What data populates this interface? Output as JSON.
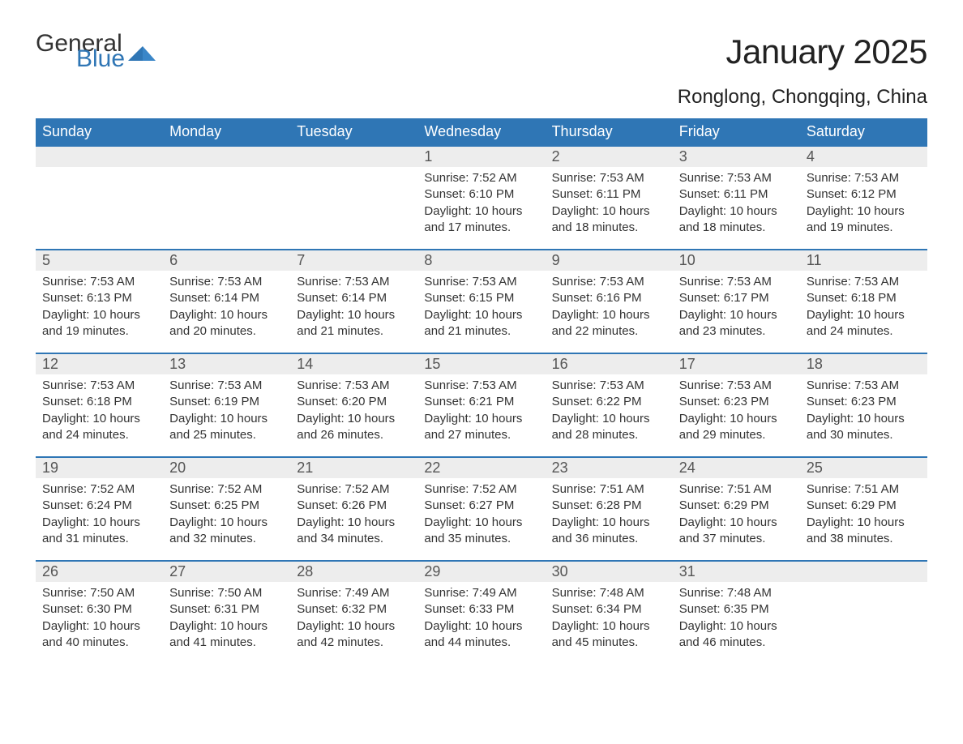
{
  "brand": {
    "word1": "General",
    "word2": "Blue",
    "color": "#2f76b5"
  },
  "title": "January 2025",
  "location": "Ronglong, Chongqing, China",
  "colors": {
    "header_bg": "#2f76b5",
    "header_text": "#ffffff",
    "daynum_bg": "#ededed",
    "body_text": "#333333",
    "page_bg": "#ffffff",
    "row_border": "#2f76b5"
  },
  "typography": {
    "title_fontsize": 42,
    "location_fontsize": 24,
    "header_fontsize": 18,
    "daynum_fontsize": 18,
    "body_fontsize": 15,
    "logo_fontsize": 30
  },
  "days_of_week": [
    "Sunday",
    "Monday",
    "Tuesday",
    "Wednesday",
    "Thursday",
    "Friday",
    "Saturday"
  ],
  "weeks": [
    [
      null,
      null,
      null,
      {
        "n": "1",
        "sunrise": "Sunrise: 7:52 AM",
        "sunset": "Sunset: 6:10 PM",
        "dl1": "Daylight: 10 hours",
        "dl2": "and 17 minutes."
      },
      {
        "n": "2",
        "sunrise": "Sunrise: 7:53 AM",
        "sunset": "Sunset: 6:11 PM",
        "dl1": "Daylight: 10 hours",
        "dl2": "and 18 minutes."
      },
      {
        "n": "3",
        "sunrise": "Sunrise: 7:53 AM",
        "sunset": "Sunset: 6:11 PM",
        "dl1": "Daylight: 10 hours",
        "dl2": "and 18 minutes."
      },
      {
        "n": "4",
        "sunrise": "Sunrise: 7:53 AM",
        "sunset": "Sunset: 6:12 PM",
        "dl1": "Daylight: 10 hours",
        "dl2": "and 19 minutes."
      }
    ],
    [
      {
        "n": "5",
        "sunrise": "Sunrise: 7:53 AM",
        "sunset": "Sunset: 6:13 PM",
        "dl1": "Daylight: 10 hours",
        "dl2": "and 19 minutes."
      },
      {
        "n": "6",
        "sunrise": "Sunrise: 7:53 AM",
        "sunset": "Sunset: 6:14 PM",
        "dl1": "Daylight: 10 hours",
        "dl2": "and 20 minutes."
      },
      {
        "n": "7",
        "sunrise": "Sunrise: 7:53 AM",
        "sunset": "Sunset: 6:14 PM",
        "dl1": "Daylight: 10 hours",
        "dl2": "and 21 minutes."
      },
      {
        "n": "8",
        "sunrise": "Sunrise: 7:53 AM",
        "sunset": "Sunset: 6:15 PM",
        "dl1": "Daylight: 10 hours",
        "dl2": "and 21 minutes."
      },
      {
        "n": "9",
        "sunrise": "Sunrise: 7:53 AM",
        "sunset": "Sunset: 6:16 PM",
        "dl1": "Daylight: 10 hours",
        "dl2": "and 22 minutes."
      },
      {
        "n": "10",
        "sunrise": "Sunrise: 7:53 AM",
        "sunset": "Sunset: 6:17 PM",
        "dl1": "Daylight: 10 hours",
        "dl2": "and 23 minutes."
      },
      {
        "n": "11",
        "sunrise": "Sunrise: 7:53 AM",
        "sunset": "Sunset: 6:18 PM",
        "dl1": "Daylight: 10 hours",
        "dl2": "and 24 minutes."
      }
    ],
    [
      {
        "n": "12",
        "sunrise": "Sunrise: 7:53 AM",
        "sunset": "Sunset: 6:18 PM",
        "dl1": "Daylight: 10 hours",
        "dl2": "and 24 minutes."
      },
      {
        "n": "13",
        "sunrise": "Sunrise: 7:53 AM",
        "sunset": "Sunset: 6:19 PM",
        "dl1": "Daylight: 10 hours",
        "dl2": "and 25 minutes."
      },
      {
        "n": "14",
        "sunrise": "Sunrise: 7:53 AM",
        "sunset": "Sunset: 6:20 PM",
        "dl1": "Daylight: 10 hours",
        "dl2": "and 26 minutes."
      },
      {
        "n": "15",
        "sunrise": "Sunrise: 7:53 AM",
        "sunset": "Sunset: 6:21 PM",
        "dl1": "Daylight: 10 hours",
        "dl2": "and 27 minutes."
      },
      {
        "n": "16",
        "sunrise": "Sunrise: 7:53 AM",
        "sunset": "Sunset: 6:22 PM",
        "dl1": "Daylight: 10 hours",
        "dl2": "and 28 minutes."
      },
      {
        "n": "17",
        "sunrise": "Sunrise: 7:53 AM",
        "sunset": "Sunset: 6:23 PM",
        "dl1": "Daylight: 10 hours",
        "dl2": "and 29 minutes."
      },
      {
        "n": "18",
        "sunrise": "Sunrise: 7:53 AM",
        "sunset": "Sunset: 6:23 PM",
        "dl1": "Daylight: 10 hours",
        "dl2": "and 30 minutes."
      }
    ],
    [
      {
        "n": "19",
        "sunrise": "Sunrise: 7:52 AM",
        "sunset": "Sunset: 6:24 PM",
        "dl1": "Daylight: 10 hours",
        "dl2": "and 31 minutes."
      },
      {
        "n": "20",
        "sunrise": "Sunrise: 7:52 AM",
        "sunset": "Sunset: 6:25 PM",
        "dl1": "Daylight: 10 hours",
        "dl2": "and 32 minutes."
      },
      {
        "n": "21",
        "sunrise": "Sunrise: 7:52 AM",
        "sunset": "Sunset: 6:26 PM",
        "dl1": "Daylight: 10 hours",
        "dl2": "and 34 minutes."
      },
      {
        "n": "22",
        "sunrise": "Sunrise: 7:52 AM",
        "sunset": "Sunset: 6:27 PM",
        "dl1": "Daylight: 10 hours",
        "dl2": "and 35 minutes."
      },
      {
        "n": "23",
        "sunrise": "Sunrise: 7:51 AM",
        "sunset": "Sunset: 6:28 PM",
        "dl1": "Daylight: 10 hours",
        "dl2": "and 36 minutes."
      },
      {
        "n": "24",
        "sunrise": "Sunrise: 7:51 AM",
        "sunset": "Sunset: 6:29 PM",
        "dl1": "Daylight: 10 hours",
        "dl2": "and 37 minutes."
      },
      {
        "n": "25",
        "sunrise": "Sunrise: 7:51 AM",
        "sunset": "Sunset: 6:29 PM",
        "dl1": "Daylight: 10 hours",
        "dl2": "and 38 minutes."
      }
    ],
    [
      {
        "n": "26",
        "sunrise": "Sunrise: 7:50 AM",
        "sunset": "Sunset: 6:30 PM",
        "dl1": "Daylight: 10 hours",
        "dl2": "and 40 minutes."
      },
      {
        "n": "27",
        "sunrise": "Sunrise: 7:50 AM",
        "sunset": "Sunset: 6:31 PM",
        "dl1": "Daylight: 10 hours",
        "dl2": "and 41 minutes."
      },
      {
        "n": "28",
        "sunrise": "Sunrise: 7:49 AM",
        "sunset": "Sunset: 6:32 PM",
        "dl1": "Daylight: 10 hours",
        "dl2": "and 42 minutes."
      },
      {
        "n": "29",
        "sunrise": "Sunrise: 7:49 AM",
        "sunset": "Sunset: 6:33 PM",
        "dl1": "Daylight: 10 hours",
        "dl2": "and 44 minutes."
      },
      {
        "n": "30",
        "sunrise": "Sunrise: 7:48 AM",
        "sunset": "Sunset: 6:34 PM",
        "dl1": "Daylight: 10 hours",
        "dl2": "and 45 minutes."
      },
      {
        "n": "31",
        "sunrise": "Sunrise: 7:48 AM",
        "sunset": "Sunset: 6:35 PM",
        "dl1": "Daylight: 10 hours",
        "dl2": "and 46 minutes."
      },
      null
    ]
  ]
}
